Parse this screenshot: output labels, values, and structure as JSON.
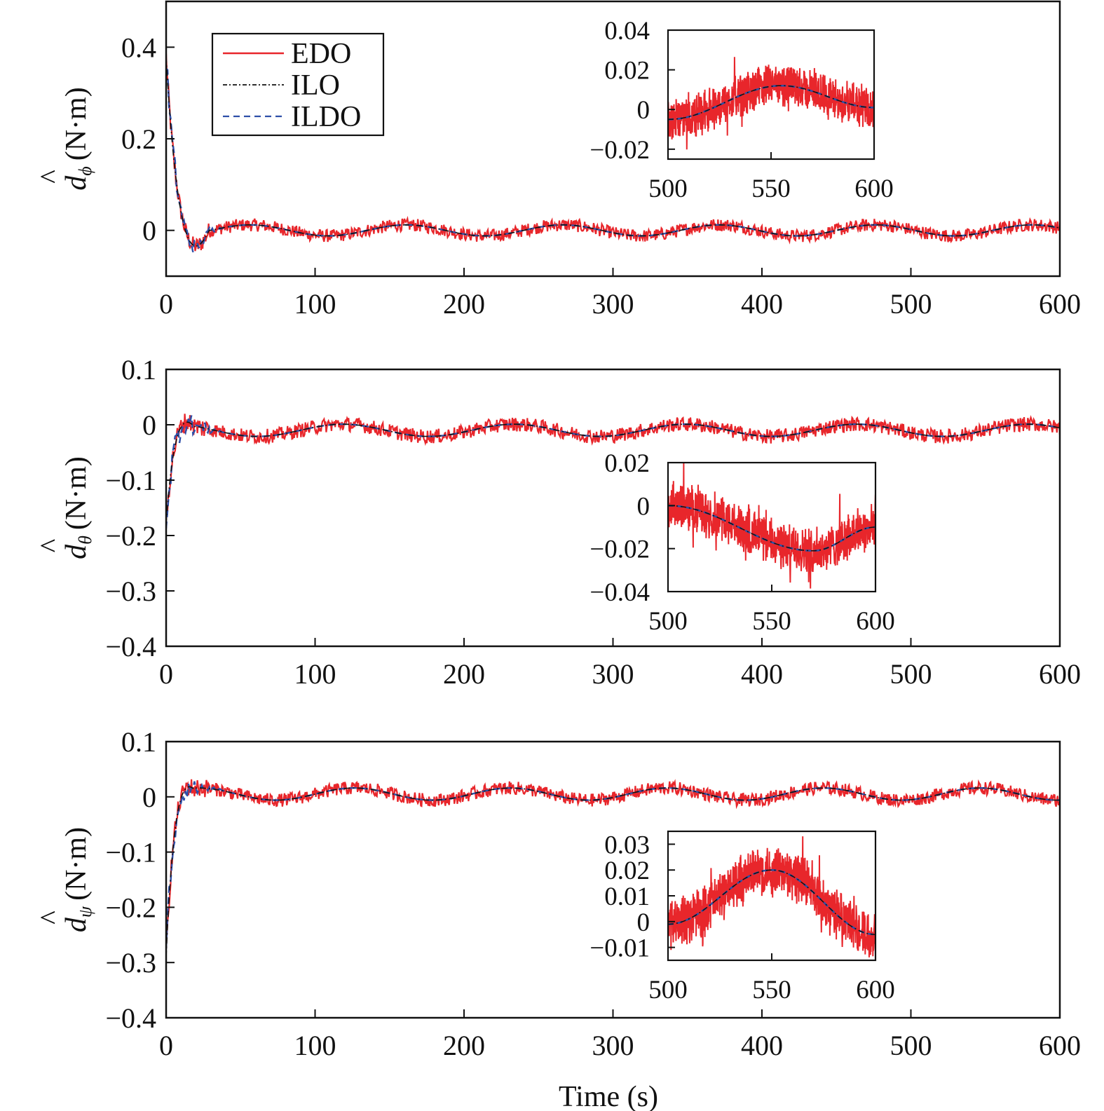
{
  "colors": {
    "edo": "#e8262b",
    "ilo": "#111111",
    "ildo": "#2e4fa8",
    "frame": "#111111"
  },
  "legend": {
    "entries": [
      {
        "key": "edo",
        "label": "EDO"
      },
      {
        "key": "ilo",
        "label": "ILO"
      },
      {
        "key": "ildo",
        "label": "ILDO"
      }
    ]
  },
  "xlabel": "Time (s)",
  "chart_data": [
    {
      "type": "line",
      "ylabel": {
        "symbol": "d",
        "hat": "^",
        "sub": "ϕ",
        "unit": "(N·m)"
      },
      "xlim": [
        0,
        600
      ],
      "ylim": [
        -0.1,
        0.5
      ],
      "x_ticks": [
        "0",
        "100",
        "200",
        "300",
        "400",
        "500",
        "600"
      ],
      "y_ticks": [
        {
          "v": 0.4,
          "t": "0.4"
        },
        {
          "v": 0.2,
          "t": "0.2"
        },
        {
          "v": 0,
          "t": "0"
        }
      ],
      "transient": {
        "start": 0.38,
        "end_time": 30,
        "dip": -0.065
      },
      "sine": {
        "amp": 0.012,
        "period": 105,
        "phase": 30,
        "offset": 0
      },
      "noise_amp": 0.014,
      "series": [
        {
          "name": "EDO",
          "key": "edo"
        },
        {
          "name": "ILO",
          "key": "ilo"
        },
        {
          "name": "ILDO",
          "key": "ildo"
        }
      ],
      "inset": {
        "xlim": [
          500,
          600
        ],
        "ylim": [
          -0.025,
          0.04
        ],
        "x_ticks": [
          "500",
          "550",
          "600"
        ],
        "y_ticks": [
          {
            "v": 0.04,
            "t": "0.04"
          },
          {
            "v": 0.02,
            "t": "0.02"
          },
          {
            "v": 0,
            "t": "0"
          },
          {
            "v": -0.02,
            "t": "−0.02"
          }
        ],
        "y_start": -0.005,
        "y_peak": 0.012,
        "peak_x": 555,
        "y_end": 0.001,
        "noise_amp": 0.012
      }
    },
    {
      "type": "line",
      "ylabel": {
        "symbol": "d",
        "hat": "^",
        "sub": "θ",
        "unit": "(N·m)"
      },
      "xlim": [
        0,
        600
      ],
      "ylim": [
        -0.4,
        0.1
      ],
      "x_ticks": [
        "0",
        "100",
        "200",
        "300",
        "400",
        "500",
        "600"
      ],
      "y_ticks": [
        {
          "v": 0.1,
          "t": "0.1"
        },
        {
          "v": 0,
          "t": "0"
        },
        {
          "v": -0.1,
          "t": "−0.1"
        },
        {
          "v": -0.2,
          "t": "−0.2"
        },
        {
          "v": -0.3,
          "t": "−0.3"
        },
        {
          "v": -0.4,
          "t": "−0.4"
        }
      ],
      "transient": {
        "start": -0.18,
        "end_time": 20,
        "dip": 0.02
      },
      "sine": {
        "amp": 0.011,
        "period": 115,
        "phase": 90,
        "offset": -0.01
      },
      "noise_amp": 0.013,
      "series": [
        {
          "name": "EDO",
          "key": "edo"
        },
        {
          "name": "ILO",
          "key": "ilo"
        },
        {
          "name": "ILDO",
          "key": "ildo"
        }
      ],
      "inset": {
        "xlim": [
          500,
          600
        ],
        "ylim": [
          -0.04,
          0.02
        ],
        "x_ticks": [
          "500",
          "550",
          "600"
        ],
        "y_ticks": [
          {
            "v": 0.02,
            "t": "0.02"
          },
          {
            "v": 0,
            "t": "0"
          },
          {
            "v": -0.02,
            "t": "−0.02"
          },
          {
            "v": -0.04,
            "t": "−0.04"
          }
        ],
        "y_start": 0.0,
        "y_peak": -0.021,
        "peak_x": 570,
        "y_end": -0.01,
        "noise_amp": 0.012
      }
    },
    {
      "type": "line",
      "ylabel": {
        "symbol": "d",
        "hat": "^",
        "sub": "ψ",
        "unit": "(N·m)"
      },
      "xlim": [
        0,
        600
      ],
      "ylim": [
        -0.4,
        0.1
      ],
      "x_ticks": [
        "0",
        "100",
        "200",
        "300",
        "400",
        "500",
        "600"
      ],
      "y_ticks": [
        {
          "v": 0.1,
          "t": "0.1"
        },
        {
          "v": 0,
          "t": "0"
        },
        {
          "v": -0.1,
          "t": "−0.1"
        },
        {
          "v": -0.2,
          "t": "−0.2"
        },
        {
          "v": -0.3,
          "t": "−0.3"
        },
        {
          "v": -0.4,
          "t": "−0.4"
        }
      ],
      "transient": {
        "start": -0.29,
        "end_time": 20,
        "dip": 0.03
      },
      "sine": {
        "amp": 0.011,
        "period": 105,
        "phase": 100,
        "offset": 0.005
      },
      "noise_amp": 0.012,
      "series": [
        {
          "name": "EDO",
          "key": "edo"
        },
        {
          "name": "ILO",
          "key": "ilo"
        },
        {
          "name": "ILDO",
          "key": "ildo"
        }
      ],
      "inset": {
        "xlim": [
          500,
          600
        ],
        "ylim": [
          -0.015,
          0.035
        ],
        "x_ticks": [
          "500",
          "550",
          "600"
        ],
        "y_ticks": [
          {
            "v": 0.03,
            "t": "0.03"
          },
          {
            "v": 0.02,
            "t": "0.02"
          },
          {
            "v": 0.01,
            "t": "0.01"
          },
          {
            "v": 0,
            "t": "0"
          },
          {
            "v": -0.01,
            "t": "−0.01"
          }
        ],
        "y_start": -0.001,
        "y_peak": 0.02,
        "peak_x": 550,
        "y_end": -0.005,
        "noise_amp": 0.011
      }
    }
  ]
}
